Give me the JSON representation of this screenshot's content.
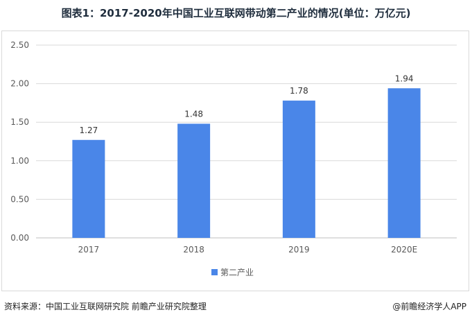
{
  "title": "图表1：2017-2020年中国工业互联网带动第二产业的情况(单位：万亿元)",
  "footer": {
    "source": "资料来源：中国工业互联网研究院 前瞻产业研究院整理",
    "brand": "@前瞻经济学人APP"
  },
  "chart_data": {
    "type": "bar",
    "title": "图表1：2017-2020年中国工业互联网带动第二产业的情况(单位：万亿元)",
    "categories": [
      "2017",
      "2018",
      "2019",
      "2020E"
    ],
    "series": [
      {
        "name": "第二产业",
        "values": [
          1.27,
          1.48,
          1.78,
          1.94
        ]
      }
    ],
    "data_labels": [
      "1.27",
      "1.48",
      "1.78",
      "1.94"
    ],
    "y_ticks": [
      "0.00",
      "0.50",
      "1.00",
      "1.50",
      "2.00",
      "2.50"
    ],
    "ylim": [
      0,
      2.5
    ],
    "grid": true,
    "legend": "bottom",
    "colors": {
      "bar": "#4a86e8",
      "grid": "#d9d9d9",
      "axis": "#bfbfbf",
      "text": "#595959"
    }
  }
}
